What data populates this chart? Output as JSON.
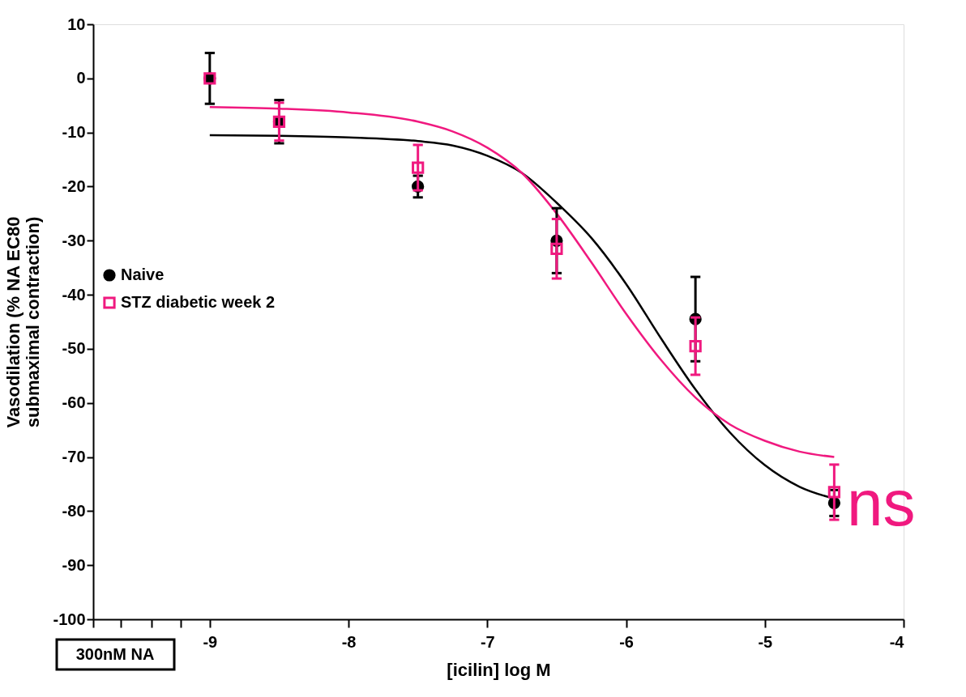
{
  "chart_data": {
    "type": "scatter",
    "xlabel": "[icilin] log M",
    "ylabel": "Vasodilation (% NA EC80\nsubmaximal contraction)",
    "xlim": [
      -9.84,
      -4
    ],
    "xticks": [
      {
        "value": -9.84,
        "label": null
      },
      {
        "value": -9.64,
        "label": null
      },
      {
        "value": -9.42,
        "label": null
      },
      {
        "value": -9.21,
        "label": null
      },
      -9,
      -8,
      -7,
      -6,
      -5,
      -4
    ],
    "ylim": [
      -100,
      10
    ],
    "yticks": [
      10,
      0,
      -10,
      -20,
      -30,
      -40,
      -50,
      -60,
      -70,
      -80,
      -90,
      -100
    ],
    "grid": false,
    "legend": "left",
    "annotations": [
      "300nM NA",
      "ns"
    ],
    "series": [
      {
        "name": "Naive",
        "marker": "circle",
        "color": "#000000",
        "x": [
          -9,
          -8.5,
          -7.5,
          -6.5,
          -5.5,
          -4.5
        ],
        "values": [
          0,
          -8,
          -20,
          -30,
          -44.5,
          -78.5
        ],
        "errors": [
          4.7,
          4,
          2,
          6,
          7.8,
          2.4
        ]
      },
      {
        "name": "STZ diabetic week 2",
        "marker": "square",
        "color": "#f0197f",
        "x": [
          -9,
          -8.5,
          -7.5,
          -6.5,
          -5.5,
          -4.5
        ],
        "values": [
          0,
          -8,
          -16.5,
          -31.5,
          -49.5,
          -76.5
        ],
        "errors": [
          null,
          3.5,
          4.2,
          5.5,
          5.3,
          5.1
        ]
      },
      {
        "type": "line",
        "color": "#000000",
        "x": [
          -9,
          -8.5,
          -8,
          -7.5,
          -7.25,
          -7,
          -6.75,
          -6.5,
          -6.25,
          -6,
          -5.75,
          -5.5,
          -5.25,
          -5,
          -4.75,
          -4.5
        ],
        "values": [
          -10.5,
          -10.6,
          -10.9,
          -11.6,
          -12.4,
          -14.3,
          -17.5,
          -23,
          -29.5,
          -38,
          -48,
          -57.5,
          -65.5,
          -71.5,
          -75.5,
          -77.7
        ]
      },
      {
        "type": "line",
        "color": "#f0197f",
        "x": [
          -9,
          -8.5,
          -8,
          -7.5,
          -7.25,
          -7,
          -6.75,
          -6.5,
          -6.25,
          -6,
          -5.75,
          -5.5,
          -5.25,
          -5,
          -4.75,
          -4.5
        ],
        "values": [
          -5.3,
          -5.6,
          -6.3,
          -8,
          -9.8,
          -12.8,
          -17.5,
          -25,
          -34,
          -43.5,
          -52,
          -59,
          -64,
          -67,
          -69,
          -70
        ]
      }
    ]
  }
}
